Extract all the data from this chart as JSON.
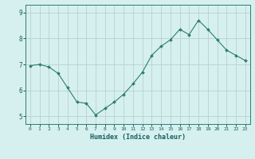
{
  "x": [
    0,
    1,
    2,
    3,
    4,
    5,
    6,
    7,
    8,
    9,
    10,
    11,
    12,
    13,
    14,
    15,
    16,
    17,
    18,
    19,
    20,
    21,
    22,
    23
  ],
  "y": [
    6.95,
    7.0,
    6.9,
    6.65,
    6.1,
    5.55,
    5.5,
    5.05,
    5.3,
    5.55,
    5.85,
    6.25,
    6.7,
    7.35,
    7.7,
    7.95,
    8.35,
    8.15,
    8.7,
    8.35,
    7.95,
    7.55,
    7.35,
    7.15
  ],
  "line_color": "#2e7d6e",
  "marker": "D",
  "marker_size": 2.0,
  "bg_color": "#d6f0f0",
  "grid_color": "#b8d0d0",
  "axis_label_color": "#1a5c5c",
  "tick_color": "#1a5c5c",
  "xlabel": "Humidex (Indice chaleur)",
  "xlim": [
    -0.5,
    23.5
  ],
  "ylim": [
    4.7,
    9.3
  ],
  "yticks": [
    5,
    6,
    7,
    8,
    9
  ],
  "xticks": [
    0,
    1,
    2,
    3,
    4,
    5,
    6,
    7,
    8,
    9,
    10,
    11,
    12,
    13,
    14,
    15,
    16,
    17,
    18,
    19,
    20,
    21,
    22,
    23
  ],
  "spine_color": "#2e7d6e",
  "figsize": [
    3.2,
    2.0
  ],
  "dpi": 100
}
